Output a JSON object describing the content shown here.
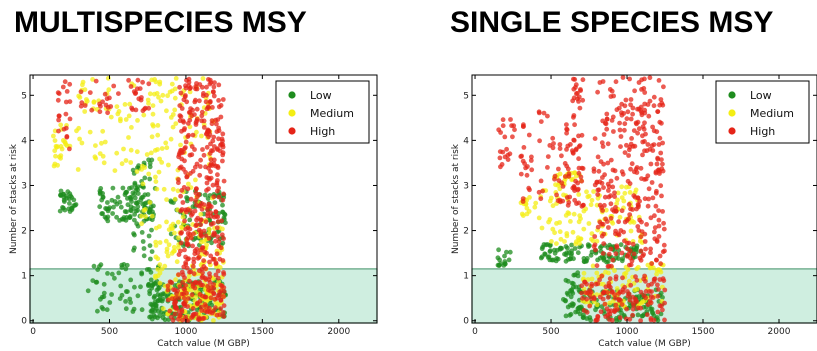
{
  "colors": {
    "Low": "#1e8c1e",
    "Medium": "#f4ee14",
    "High": "#e52418",
    "highlight_fill": "#bfe8d6",
    "highlight_stroke": "#5aa27c"
  },
  "chart_data": [
    {
      "type": "scatter",
      "title": "MULTISPECIES MSY",
      "xlabel": "Catch value (M GBP)",
      "ylabel": "Number of stacks at risk",
      "xlim": [
        -20,
        2250
      ],
      "ylim": [
        -0.05,
        5.45
      ],
      "xticks": [
        0,
        500,
        1000,
        1500,
        2000
      ],
      "yticks": [
        0,
        1,
        2,
        3,
        4,
        5
      ],
      "grid": false,
      "legend": {
        "location": "top-right",
        "entries": [
          "Low",
          "Medium",
          "High"
        ]
      },
      "highlight_band": {
        "y_range": [
          -0.05,
          1.15
        ],
        "x_range": [
          -20,
          2250
        ]
      },
      "series": [
        {
          "name": "Low",
          "clusters": [
            {
              "x": [
                170,
                290
              ],
              "y": [
                2.4,
                2.9
              ],
              "n": 30
            },
            {
              "x": [
                430,
                800
              ],
              "y": [
                2.2,
                3.0
              ],
              "n": 90
            },
            {
              "x": [
                640,
                780
              ],
              "y": [
                1.3,
                3.6
              ],
              "n": 50
            },
            {
              "x": [
                900,
                1260
              ],
              "y": [
                1.6,
                2.9
              ],
              "n": 90
            },
            {
              "x": [
                360,
                820
              ],
              "y": [
                0.2,
                1.3
              ],
              "n": 60
            },
            {
              "x": [
                750,
                1260
              ],
              "y": [
                0.0,
                0.9
              ],
              "n": 160
            }
          ]
        },
        {
          "name": "Medium",
          "clusters": [
            {
              "x": [
                120,
                250
              ],
              "y": [
                3.4,
                4.4
              ],
              "n": 25
            },
            {
              "x": [
                280,
                700
              ],
              "y": [
                3.2,
                5.4
              ],
              "n": 60
            },
            {
              "x": [
                700,
                1180
              ],
              "y": [
                2.0,
                5.4
              ],
              "n": 120
            },
            {
              "x": [
                800,
                1260
              ],
              "y": [
                0.8,
                2.2
              ],
              "n": 90
            },
            {
              "x": [
                850,
                1250
              ],
              "y": [
                0.0,
                0.8
              ],
              "n": 110
            }
          ]
        },
        {
          "name": "High",
          "clusters": [
            {
              "x": [
                160,
                260
              ],
              "y": [
                3.8,
                5.4
              ],
              "n": 20
            },
            {
              "x": [
                300,
                560
              ],
              "y": [
                4.6,
                5.4
              ],
              "n": 20
            },
            {
              "x": [
                620,
                760
              ],
              "y": [
                4.6,
                5.4
              ],
              "n": 20
            },
            {
              "x": [
                950,
                1250
              ],
              "y": [
                0.9,
                5.4
              ],
              "n": 330
            },
            {
              "x": [
                880,
                1250
              ],
              "y": [
                0.0,
                0.9
              ],
              "n": 120
            }
          ]
        }
      ]
    },
    {
      "type": "scatter",
      "title": "SINGLE SPECIES MSY",
      "xlabel": "Catch value (M GBP)",
      "ylabel": "Number of stacks at risk",
      "xlim": [
        -20,
        2250
      ],
      "ylim": [
        -0.05,
        5.45
      ],
      "xticks": [
        0,
        500,
        1000,
        1500,
        2000
      ],
      "yticks": [
        0,
        1,
        2,
        3,
        4,
        5
      ],
      "grid": false,
      "legend": {
        "location": "top-right",
        "entries": [
          "Low",
          "Medium",
          "High"
        ]
      },
      "highlight_band": {
        "y_range": [
          -0.05,
          1.15
        ],
        "x_range": [
          -20,
          2250
        ]
      },
      "series": [
        {
          "name": "Low",
          "clusters": [
            {
              "x": [
                150,
                240
              ],
              "y": [
                1.2,
                1.6
              ],
              "n": 15
            },
            {
              "x": [
                420,
                1100
              ],
              "y": [
                1.3,
                1.7
              ],
              "n": 110
            },
            {
              "x": [
                580,
                700
              ],
              "y": [
                0.1,
                1.1
              ],
              "n": 40
            },
            {
              "x": [
                700,
                1250
              ],
              "y": [
                0.0,
                0.7
              ],
              "n": 110
            }
          ]
        },
        {
          "name": "Medium",
          "clusters": [
            {
              "x": [
                300,
                400
              ],
              "y": [
                2.3,
                2.8
              ],
              "n": 15
            },
            {
              "x": [
                420,
                1100
              ],
              "y": [
                1.7,
                3.0
              ],
              "n": 110
            },
            {
              "x": [
                500,
                700
              ],
              "y": [
                3.0,
                3.3
              ],
              "n": 25
            },
            {
              "x": [
                700,
                1250
              ],
              "y": [
                0.3,
                1.3
              ],
              "n": 90
            }
          ]
        },
        {
          "name": "High",
          "clusters": [
            {
              "x": [
                150,
                260
              ],
              "y": [
                3.3,
                4.5
              ],
              "n": 20
            },
            {
              "x": [
                300,
                380
              ],
              "y": [
                2.6,
                4.8
              ],
              "n": 20
            },
            {
              "x": [
                420,
                650
              ],
              "y": [
                2.5,
                4.7
              ],
              "n": 50
            },
            {
              "x": [
                640,
                720
              ],
              "y": [
                2.5,
                5.4
              ],
              "n": 50
            },
            {
              "x": [
                780,
                1250
              ],
              "y": [
                1.2,
                5.4
              ],
              "n": 300
            },
            {
              "x": [
                700,
                1250
              ],
              "y": [
                0.0,
                1.0
              ],
              "n": 130
            }
          ]
        }
      ]
    }
  ]
}
